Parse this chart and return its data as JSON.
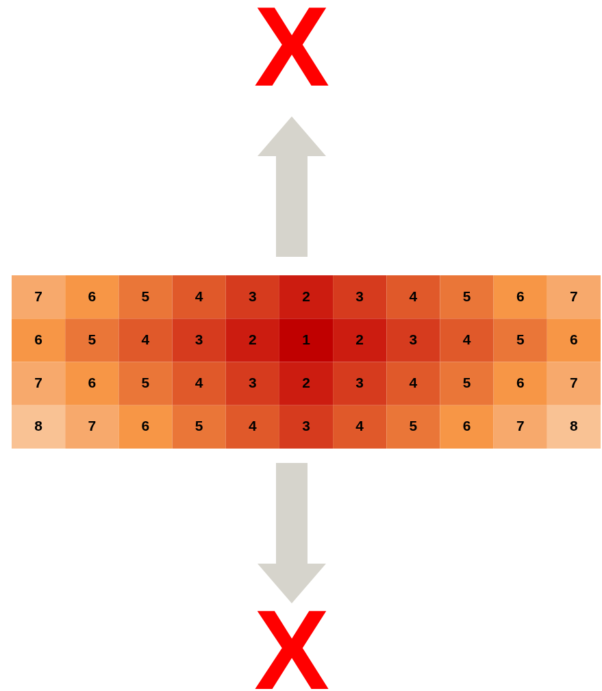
{
  "chart_data": {
    "type": "heatmap",
    "categories": [
      null,
      null,
      null,
      null,
      null,
      null,
      null,
      null,
      null,
      null,
      null
    ],
    "y_categories": [
      null,
      null,
      null,
      null
    ],
    "cells": [
      [
        7,
        6,
        5,
        4,
        3,
        2,
        3,
        4,
        5,
        6,
        7
      ],
      [
        6,
        5,
        4,
        3,
        2,
        1,
        2,
        3,
        4,
        5,
        6
      ],
      [
        7,
        6,
        5,
        4,
        3,
        2,
        3,
        4,
        5,
        6,
        7
      ],
      [
        8,
        7,
        6,
        5,
        4,
        3,
        4,
        5,
        6,
        7,
        8
      ]
    ],
    "data_labels": true,
    "annotations": [
      "X",
      "X"
    ]
  }
}
